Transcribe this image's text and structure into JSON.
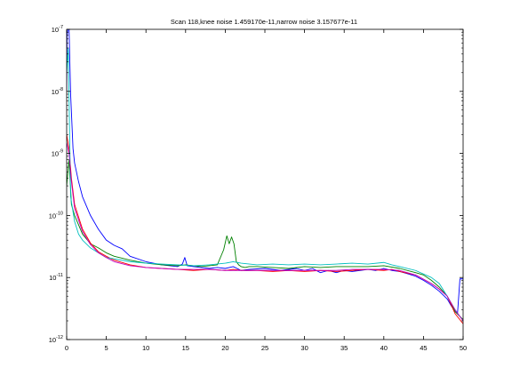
{
  "chart_data": {
    "type": "line",
    "title": "Scan 118,knee noise 1.459170e-11,narrow noise 3.157677e-11",
    "xlabel": "",
    "ylabel": "",
    "xlim": [
      0,
      50
    ],
    "ylim": [
      1e-12,
      1e-07
    ],
    "yscale": "log",
    "grid": false,
    "xticks": [
      0,
      5,
      10,
      15,
      20,
      25,
      30,
      35,
      40,
      45,
      50
    ],
    "yticks": [
      {
        "base": "10",
        "exp": "-12",
        "value": 1e-12
      },
      {
        "base": "10",
        "exp": "-11",
        "value": 1e-11
      },
      {
        "base": "10",
        "exp": "-10",
        "value": 1e-10
      },
      {
        "base": "10",
        "exp": "-9",
        "value": 1e-09
      },
      {
        "base": "10",
        "exp": "-8",
        "value": 1e-08
      },
      {
        "base": "10",
        "exp": "-7",
        "value": 1e-07
      }
    ],
    "series": [
      {
        "color": "#0000ff",
        "x": [
          0,
          0.05,
          0.15,
          0.3,
          0.5,
          0.8,
          1,
          1.5,
          2,
          3,
          4,
          5,
          6,
          7,
          8,
          10,
          12,
          14,
          14.6,
          14.9,
          15.2,
          16,
          17,
          18,
          19,
          20,
          21,
          22,
          23,
          25,
          27,
          29,
          30,
          31,
          32,
          33,
          34,
          35,
          36,
          37,
          38,
          39,
          40,
          41,
          42,
          43,
          44,
          45,
          46,
          47,
          48,
          48.5,
          49,
          49.3,
          49.6,
          50
        ],
        "y": [
          1e-08,
          8e-08,
          1e-07,
          1e-07,
          9e-09,
          1.2e-09,
          7e-10,
          3.5e-10,
          2e-10,
          1e-10,
          6e-11,
          4e-11,
          3.3e-11,
          2.9e-11,
          2.2e-11,
          1.8e-11,
          1.6e-11,
          1.5e-11,
          1.65e-11,
          2.1e-11,
          1.55e-11,
          1.5e-11,
          1.45e-11,
          1.4e-11,
          1.45e-11,
          1.4e-11,
          1.5e-11,
          1.3e-11,
          1.35e-11,
          1.4e-11,
          1.3e-11,
          1.4e-11,
          1.3e-11,
          1.4e-11,
          1.2e-11,
          1.3e-11,
          1.2e-11,
          1.3e-11,
          1.25e-11,
          1.3e-11,
          1.35e-11,
          1.3e-11,
          1.4e-11,
          1.3e-11,
          1.25e-11,
          1.15e-11,
          1.05e-11,
          9e-12,
          7.5e-12,
          6e-12,
          4.5e-12,
          3.5e-12,
          2.8e-12,
          2.7e-12,
          9.5e-12,
          9.5e-12
        ]
      },
      {
        "color": "#008000",
        "x": [
          0,
          0.3,
          0.6,
          1,
          2,
          3,
          4,
          5,
          6,
          8,
          10,
          12,
          14,
          15,
          16,
          17,
          18,
          19,
          19.8,
          20.2,
          20.5,
          20.8,
          21.1,
          21.4,
          21.7,
          22,
          22.5,
          23,
          24,
          26,
          28,
          30,
          32,
          34,
          36,
          38,
          40,
          42,
          44,
          45,
          46,
          47,
          48,
          49,
          50
        ],
        "y": [
          3e-10,
          8e-10,
          1.5e-10,
          1e-10,
          5e-11,
          3.5e-11,
          3e-11,
          2.5e-11,
          2.2e-11,
          1.9e-11,
          1.7e-11,
          1.6e-11,
          1.55e-11,
          1.6e-11,
          1.55e-11,
          1.5e-11,
          1.55e-11,
          1.6e-11,
          2.8e-11,
          4.7e-11,
          3.5e-11,
          4.5e-11,
          3.5e-11,
          1.8e-11,
          1.6e-11,
          1.5e-11,
          1.45e-11,
          1.5e-11,
          1.5e-11,
          1.45e-11,
          1.4e-11,
          1.5e-11,
          1.45e-11,
          1.5e-11,
          1.5e-11,
          1.5e-11,
          1.55e-11,
          1.4e-11,
          1.2e-11,
          1.1e-11,
          9e-12,
          7e-12,
          5e-12,
          2.8e-12,
          2.1e-12
        ]
      },
      {
        "color": "#ff0000",
        "x": [
          0,
          0.3,
          0.6,
          1,
          2,
          3,
          4,
          5,
          6,
          8,
          10,
          12,
          14,
          16,
          18,
          20,
          21,
          22,
          24,
          26,
          28,
          30,
          32,
          34,
          36,
          38,
          40,
          41,
          42,
          44,
          46,
          47,
          48,
          49,
          50
        ],
        "y": [
          2e-09,
          1.2e-09,
          4e-10,
          1.5e-10,
          6e-11,
          3.6e-11,
          2.6e-11,
          2.2e-11,
          1.9e-11,
          1.6e-11,
          1.45e-11,
          1.4e-11,
          1.35e-11,
          1.3e-11,
          1.35e-11,
          1.3e-11,
          1.35e-11,
          1.3e-11,
          1.3e-11,
          1.25e-11,
          1.3e-11,
          1.25e-11,
          1.3e-11,
          1.25e-11,
          1.3e-11,
          1.35e-11,
          1.3e-11,
          1.35e-11,
          1.25e-11,
          1.1e-11,
          8e-12,
          6.5e-12,
          5e-12,
          2.6e-12,
          1.8e-12
        ]
      },
      {
        "color": "#00bfbf",
        "x": [
          0,
          0.2,
          0.5,
          1,
          1.5,
          2,
          3,
          4,
          5,
          6,
          8,
          10,
          12,
          14,
          16,
          18,
          20,
          21,
          22,
          24,
          26,
          28,
          30,
          32,
          34,
          36,
          38,
          40,
          41,
          42,
          44,
          46,
          47,
          48,
          49,
          50
        ],
        "y": [
          2e-08,
          5e-08,
          2e-10,
          8e-11,
          5e-11,
          4e-11,
          3e-11,
          2.5e-11,
          2.1e-11,
          2e-11,
          1.8e-11,
          1.7e-11,
          1.65e-11,
          1.6e-11,
          1.55e-11,
          1.6e-11,
          1.7e-11,
          1.8e-11,
          1.7e-11,
          1.6e-11,
          1.65e-11,
          1.6e-11,
          1.65e-11,
          1.6e-11,
          1.65e-11,
          1.7e-11,
          1.65e-11,
          1.75e-11,
          1.6e-11,
          1.5e-11,
          1.3e-11,
          1e-11,
          8e-12,
          5e-12,
          3e-12,
          2e-12
        ]
      },
      {
        "color": "#bf00bf",
        "x": [
          0,
          0.3,
          0.6,
          1,
          2,
          3,
          4,
          5,
          6,
          8,
          10,
          12,
          14,
          16,
          18,
          20,
          22,
          24,
          26,
          28,
          30,
          32,
          34,
          36,
          38,
          40,
          42,
          44,
          46,
          47,
          48,
          49,
          50
        ],
        "y": [
          1.5e-09,
          1e-09,
          3.5e-10,
          1.3e-10,
          5.5e-11,
          3.4e-11,
          2.5e-11,
          2.1e-11,
          1.8e-11,
          1.55e-11,
          1.45e-11,
          1.4e-11,
          1.35e-11,
          1.35e-11,
          1.35e-11,
          1.3e-11,
          1.3e-11,
          1.3e-11,
          1.3e-11,
          1.3e-11,
          1.3e-11,
          1.3e-11,
          1.3e-11,
          1.35e-11,
          1.35e-11,
          1.35e-11,
          1.3e-11,
          1.1e-11,
          8e-12,
          6.5e-12,
          5e-12,
          3e-12,
          2e-12
        ]
      }
    ]
  }
}
